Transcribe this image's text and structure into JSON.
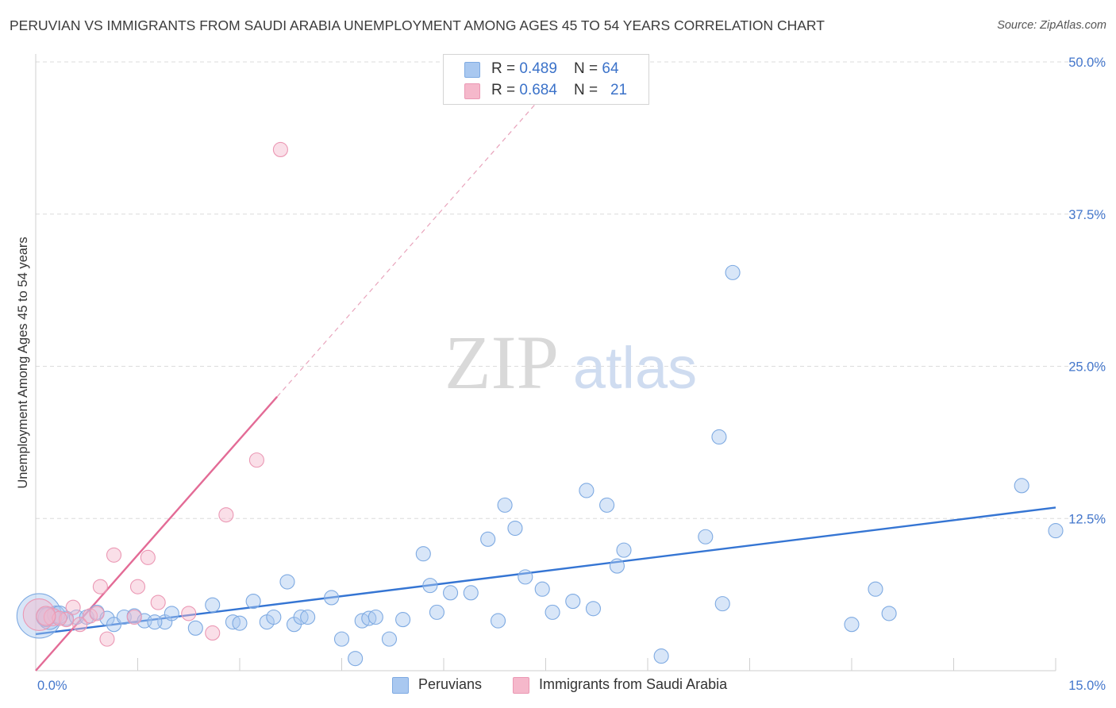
{
  "header": {
    "title": "PERUVIAN VS IMMIGRANTS FROM SAUDI ARABIA UNEMPLOYMENT AMONG AGES 45 TO 54 YEARS CORRELATION CHART",
    "source": "Source: ZipAtlas.com"
  },
  "watermark": {
    "zip": "ZIP",
    "atlas": "atlas"
  },
  "legend": {
    "rows": [
      {
        "r_label": "R = ",
        "r_value": "0.489",
        "n_label": "N = ",
        "n_value": "64",
        "color": "#a9c8f0"
      },
      {
        "r_label": "R = ",
        "r_value": "0.684",
        "n_label": "N = ",
        "n_value": "21",
        "color": "#f5b8cb"
      }
    ]
  },
  "bottom_legend": {
    "series1": "Peruvians",
    "series2": "Immigrants from Saudi Arabia"
  },
  "chart_data": {
    "type": "scatter",
    "title": "PERUVIAN VS IMMIGRANTS FROM SAUDI ARABIA UNEMPLOYMENT AMONG AGES 45 TO 54 YEARS CORRELATION CHART",
    "xlabel": "",
    "ylabel": "Unemployment Among Ages 45 to 54 years",
    "xlim": [
      0,
      15
    ],
    "ylim": [
      0,
      50
    ],
    "x_tick_labels": [
      "0.0%",
      "15.0%"
    ],
    "y_ticks": [
      12.5,
      25.0,
      37.5,
      50.0
    ],
    "y_tick_labels": [
      "12.5%",
      "25.0%",
      "37.5%",
      "50.0%"
    ],
    "grid": true,
    "colors": {
      "peruvians": "#3575d3",
      "peruvians_fill": "#a9c8f0",
      "saudi": "#e36b96",
      "saudi_fill": "#f5b8cb"
    },
    "series": [
      {
        "name": "Peruvians",
        "trendline": {
          "x": [
            0.0,
            15.0
          ],
          "y": [
            3.0,
            13.4
          ]
        },
        "points": [
          {
            "x": 0.05,
            "y": 4.5,
            "s": 28
          },
          {
            "x": 0.2,
            "y": 4.3,
            "s": 14
          },
          {
            "x": 0.3,
            "y": 4.6,
            "s": 11
          },
          {
            "x": 0.45,
            "y": 4.3,
            "s": 9
          },
          {
            "x": 0.6,
            "y": 4.4,
            "s": 9
          },
          {
            "x": 0.75,
            "y": 4.4,
            "s": 9
          },
          {
            "x": 0.9,
            "y": 4.8,
            "s": 9
          },
          {
            "x": 1.05,
            "y": 4.3,
            "s": 9
          },
          {
            "x": 1.15,
            "y": 3.8,
            "s": 9
          },
          {
            "x": 1.3,
            "y": 4.4,
            "s": 9
          },
          {
            "x": 1.45,
            "y": 4.5,
            "s": 9
          },
          {
            "x": 1.6,
            "y": 4.1,
            "s": 9
          },
          {
            "x": 1.9,
            "y": 4.0,
            "s": 9
          },
          {
            "x": 2.0,
            "y": 4.7,
            "s": 9
          },
          {
            "x": 2.35,
            "y": 3.5,
            "s": 9
          },
          {
            "x": 2.6,
            "y": 5.4,
            "s": 9
          },
          {
            "x": 1.75,
            "y": 4.0,
            "s": 9
          },
          {
            "x": 2.9,
            "y": 4.0,
            "s": 9
          },
          {
            "x": 3.0,
            "y": 3.9,
            "s": 9
          },
          {
            "x": 3.2,
            "y": 5.7,
            "s": 9
          },
          {
            "x": 3.4,
            "y": 4.0,
            "s": 9
          },
          {
            "x": 3.5,
            "y": 4.4,
            "s": 9
          },
          {
            "x": 3.7,
            "y": 7.3,
            "s": 9
          },
          {
            "x": 3.8,
            "y": 3.8,
            "s": 9
          },
          {
            "x": 3.9,
            "y": 4.4,
            "s": 9
          },
          {
            "x": 4.0,
            "y": 4.4,
            "s": 9
          },
          {
            "x": 4.35,
            "y": 6.0,
            "s": 9
          },
          {
            "x": 4.5,
            "y": 2.6,
            "s": 9
          },
          {
            "x": 4.8,
            "y": 4.1,
            "s": 9
          },
          {
            "x": 4.7,
            "y": 1.0,
            "s": 9
          },
          {
            "x": 4.9,
            "y": 4.3,
            "s": 9
          },
          {
            "x": 5.0,
            "y": 4.4,
            "s": 9
          },
          {
            "x": 5.2,
            "y": 2.6,
            "s": 9
          },
          {
            "x": 5.4,
            "y": 4.2,
            "s": 9
          },
          {
            "x": 5.7,
            "y": 9.6,
            "s": 9
          },
          {
            "x": 5.8,
            "y": 7.0,
            "s": 9
          },
          {
            "x": 5.9,
            "y": 4.8,
            "s": 9
          },
          {
            "x": 6.1,
            "y": 6.4,
            "s": 9
          },
          {
            "x": 6.4,
            "y": 6.4,
            "s": 9
          },
          {
            "x": 6.65,
            "y": 10.8,
            "s": 9
          },
          {
            "x": 6.8,
            "y": 4.1,
            "s": 9
          },
          {
            "x": 6.9,
            "y": 13.6,
            "s": 9
          },
          {
            "x": 7.05,
            "y": 11.7,
            "s": 9
          },
          {
            "x": 7.2,
            "y": 7.7,
            "s": 9
          },
          {
            "x": 7.45,
            "y": 6.7,
            "s": 9
          },
          {
            "x": 7.6,
            "y": 4.8,
            "s": 9
          },
          {
            "x": 7.9,
            "y": 5.7,
            "s": 9
          },
          {
            "x": 8.1,
            "y": 14.8,
            "s": 9
          },
          {
            "x": 8.2,
            "y": 5.1,
            "s": 9
          },
          {
            "x": 8.4,
            "y": 13.6,
            "s": 9
          },
          {
            "x": 8.55,
            "y": 8.6,
            "s": 9
          },
          {
            "x": 8.65,
            "y": 9.9,
            "s": 9
          },
          {
            "x": 9.2,
            "y": 1.2,
            "s": 9
          },
          {
            "x": 9.85,
            "y": 11.0,
            "s": 9
          },
          {
            "x": 10.05,
            "y": 19.2,
            "s": 9
          },
          {
            "x": 10.1,
            "y": 5.5,
            "s": 9
          },
          {
            "x": 10.25,
            "y": 32.7,
            "s": 9
          },
          {
            "x": 12.0,
            "y": 3.8,
            "s": 9
          },
          {
            "x": 12.35,
            "y": 6.7,
            "s": 9
          },
          {
            "x": 12.55,
            "y": 4.7,
            "s": 9
          },
          {
            "x": 14.5,
            "y": 15.2,
            "s": 9
          },
          {
            "x": 15.0,
            "y": 11.5,
            "s": 9
          },
          {
            "x": 0.35,
            "y": 4.6,
            "s": 11
          },
          {
            "x": 0.15,
            "y": 4.4,
            "s": 12
          }
        ]
      },
      {
        "name": "Immigrants from Saudi Arabia",
        "trendline": {
          "x": [
            0.0,
            3.55
          ],
          "y": [
            0.0,
            22.5
          ]
        },
        "trendline_extension": {
          "x": [
            3.55,
            7.5
          ],
          "y": [
            22.5,
            47.5
          ]
        },
        "points": [
          {
            "x": 0.05,
            "y": 4.6,
            "s": 20
          },
          {
            "x": 0.25,
            "y": 4.4,
            "s": 11
          },
          {
            "x": 0.45,
            "y": 4.2,
            "s": 9
          },
          {
            "x": 0.55,
            "y": 5.2,
            "s": 9
          },
          {
            "x": 0.65,
            "y": 3.8,
            "s": 9
          },
          {
            "x": 0.8,
            "y": 4.5,
            "s": 9
          },
          {
            "x": 0.95,
            "y": 6.9,
            "s": 9
          },
          {
            "x": 1.05,
            "y": 2.6,
            "s": 9
          },
          {
            "x": 1.15,
            "y": 9.5,
            "s": 9
          },
          {
            "x": 1.5,
            "y": 6.9,
            "s": 9
          },
          {
            "x": 1.65,
            "y": 9.3,
            "s": 9
          },
          {
            "x": 1.8,
            "y": 5.6,
            "s": 9
          },
          {
            "x": 2.25,
            "y": 4.7,
            "s": 9
          },
          {
            "x": 2.6,
            "y": 3.1,
            "s": 9
          },
          {
            "x": 2.8,
            "y": 12.8,
            "s": 9
          },
          {
            "x": 3.25,
            "y": 17.3,
            "s": 9
          },
          {
            "x": 3.6,
            "y": 42.8,
            "s": 9
          },
          {
            "x": 0.9,
            "y": 4.7,
            "s": 9
          },
          {
            "x": 0.35,
            "y": 4.3,
            "s": 9
          },
          {
            "x": 1.45,
            "y": 4.4,
            "s": 9
          },
          {
            "x": 0.15,
            "y": 4.5,
            "s": 12
          }
        ]
      }
    ]
  }
}
